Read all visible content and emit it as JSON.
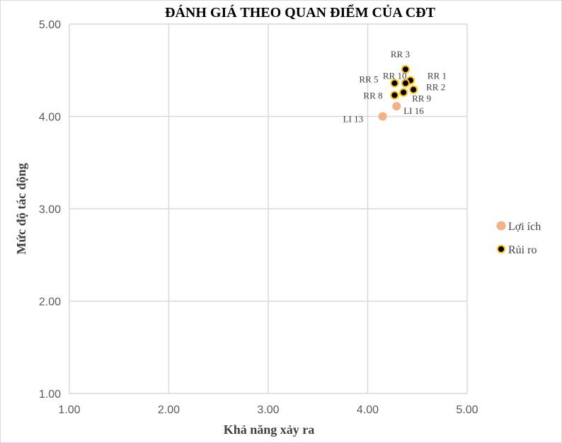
{
  "chart_data": {
    "type": "scatter",
    "title": "ĐÁNH GIÁ THEO QUAN ĐIỂM CỦA CĐT",
    "xlabel": "Khả năng xảy ra",
    "ylabel": "Mức độ tác động",
    "xlim": [
      1.0,
      5.0
    ],
    "ylim": [
      1.0,
      5.0
    ],
    "xticks": [
      "1.00",
      "2.00",
      "3.00",
      "4.00",
      "5.00"
    ],
    "yticks": [
      "1.00",
      "2.00",
      "3.00",
      "4.00",
      "5.00"
    ],
    "grid": true,
    "legend_position": "right",
    "series": [
      {
        "name": "Lợi ích",
        "color": "#f4b183",
        "edge": "#f4b183",
        "points": [
          {
            "label": "LI 13",
            "x": 4.15,
            "y": 4.0
          },
          {
            "label": "LI 16",
            "x": 4.29,
            "y": 4.11
          }
        ]
      },
      {
        "name": "Rủi ro",
        "color": "#000000",
        "edge": "#ffc000",
        "points": [
          {
            "label": "RR 3",
            "x": 4.38,
            "y": 4.51
          },
          {
            "label": "RR 1",
            "x": 4.43,
            "y": 4.39
          },
          {
            "label": "RR 10",
            "x": 4.38,
            "y": 4.36
          },
          {
            "label": "RR 5",
            "x": 4.27,
            "y": 4.36
          },
          {
            "label": "RR 2",
            "x": 4.46,
            "y": 4.29
          },
          {
            "label": "RR 9",
            "x": 4.36,
            "y": 4.26
          },
          {
            "label": "RR 8",
            "x": 4.27,
            "y": 4.23
          }
        ]
      }
    ]
  }
}
